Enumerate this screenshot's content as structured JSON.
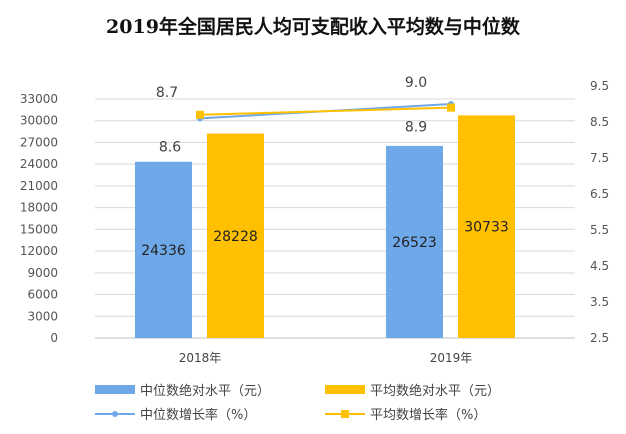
{
  "chart_data": {
    "type": "bar+line",
    "title": "2019年全国居民人均可支配收入平均数与中位数",
    "categories": [
      "2018年",
      "2019年"
    ],
    "left_axis": {
      "ylim": [
        0,
        33000
      ],
      "ticks": [
        "0",
        "3000",
        "6000",
        "9000",
        "12000",
        "15000",
        "18000",
        "21000",
        "24000",
        "27000",
        "30000",
        "33000"
      ]
    },
    "right_axis": {
      "ylim": [
        2.5,
        9.5
      ],
      "ticks": [
        "2.5",
        "3.5",
        "4.5",
        "5.5",
        "6.5",
        "7.5",
        "8.5",
        "9.5"
      ]
    },
    "grid": true,
    "legend_placement": "bottom",
    "series": [
      {
        "name": "中位数绝对水平（元）",
        "type": "bar",
        "axis": "left",
        "color": "#6fa8e8",
        "values": [
          24336,
          26523
        ],
        "labels": [
          "24336",
          "26523"
        ]
      },
      {
        "name": "平均数绝对水平（元）",
        "type": "bar",
        "axis": "left",
        "color": "#ffc000",
        "values": [
          28228,
          30733
        ],
        "labels": [
          "28228",
          "30733"
        ]
      },
      {
        "name": "中位数增长率（%）",
        "type": "line",
        "axis": "right",
        "color": "#6fa8e8",
        "values": [
          8.6,
          9.0
        ],
        "labels": [
          "8.6",
          "9.0"
        ]
      },
      {
        "name": "平均数增长率（%）",
        "type": "line",
        "axis": "right",
        "color": "#ffc000",
        "values": [
          8.7,
          8.9
        ],
        "labels": [
          "8.7",
          "8.9"
        ]
      }
    ]
  }
}
